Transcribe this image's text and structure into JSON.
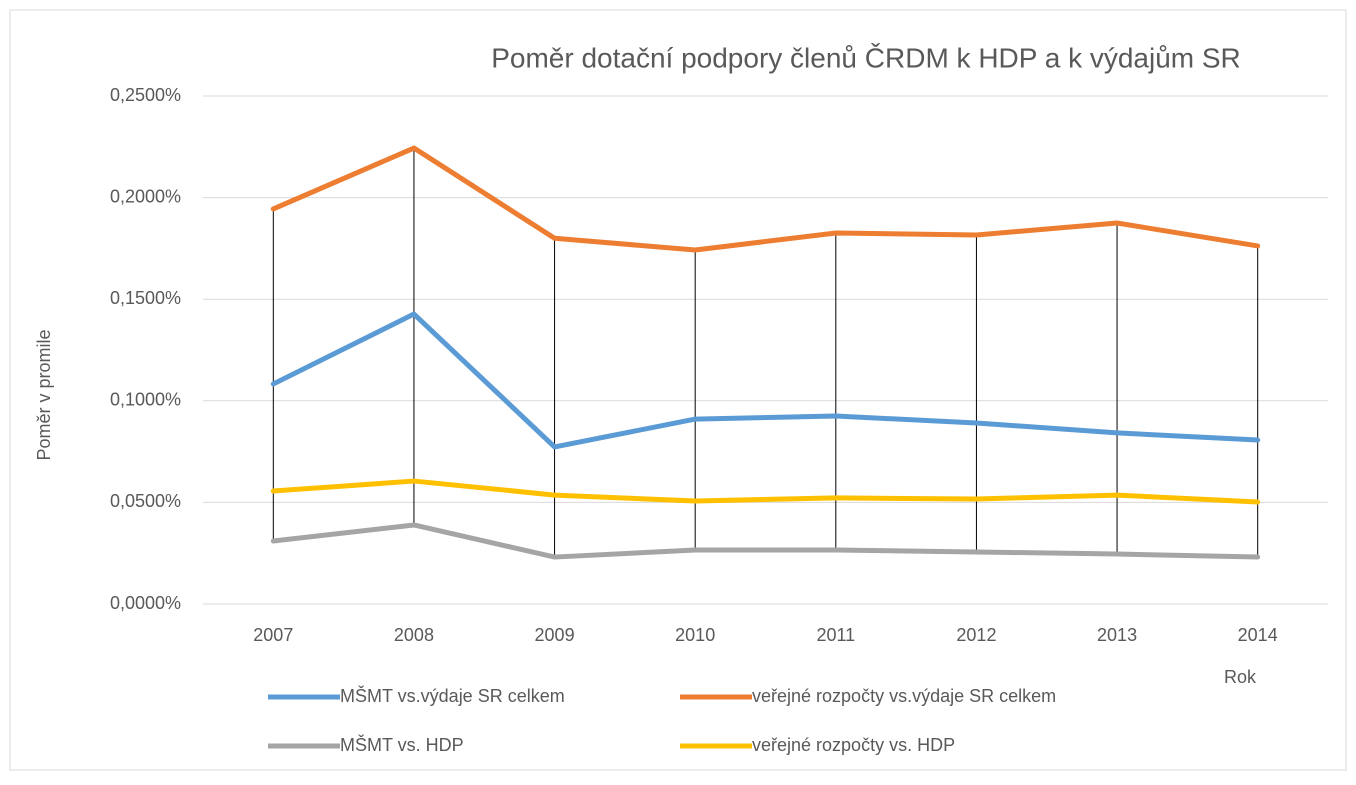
{
  "chart_data": {
    "type": "line",
    "title": "Poměr dotační podpory členů ČRDM k HDP a k výdajům SR",
    "y_label": "Poměr v promile",
    "x_label": "Rok",
    "categories": [
      "2007",
      "2008",
      "2009",
      "2010",
      "2011",
      "2012",
      "2013",
      "2014"
    ],
    "series": [
      {
        "name": "MŠMT vs.výdaje SR celkem",
        "color": "#5b9bd5",
        "values": [
          0.1083,
          0.1427,
          0.0773,
          0.091,
          0.0925,
          0.0891,
          0.0842,
          0.0807
        ]
      },
      {
        "name": "veřejné rozpočty vs.výdaje SR celkem",
        "color": "#ed7d31",
        "values": [
          0.1944,
          0.2244,
          0.18,
          0.1742,
          0.1826,
          0.1816,
          0.1875,
          0.1762
        ]
      },
      {
        "name": "MŠMT vs. HDP",
        "color": "#a5a5a5",
        "values": [
          0.031,
          0.0389,
          0.0231,
          0.0266,
          0.0266,
          0.0256,
          0.0246,
          0.0231
        ]
      },
      {
        "name": "veřejné rozpočty vs. HDP",
        "color": "#ffc000",
        "values": [
          0.0556,
          0.0605,
          0.0536,
          0.0507,
          0.0522,
          0.0517,
          0.0536,
          0.0502
        ]
      }
    ],
    "ylim": [
      0,
      0.25
    ],
    "yticks": [
      {
        "value": 0,
        "label": "0,0000%"
      },
      {
        "value": 0.05,
        "label": "0,0500%"
      },
      {
        "value": 0.1,
        "label": "0,1000%"
      },
      {
        "value": 0.15,
        "label": "0,1500%"
      },
      {
        "value": 0.2,
        "label": "0,2000%"
      },
      {
        "value": 0.25,
        "label": "0,2500%"
      }
    ],
    "grid": true,
    "high_low_lines": true,
    "legend_position": "bottom"
  }
}
